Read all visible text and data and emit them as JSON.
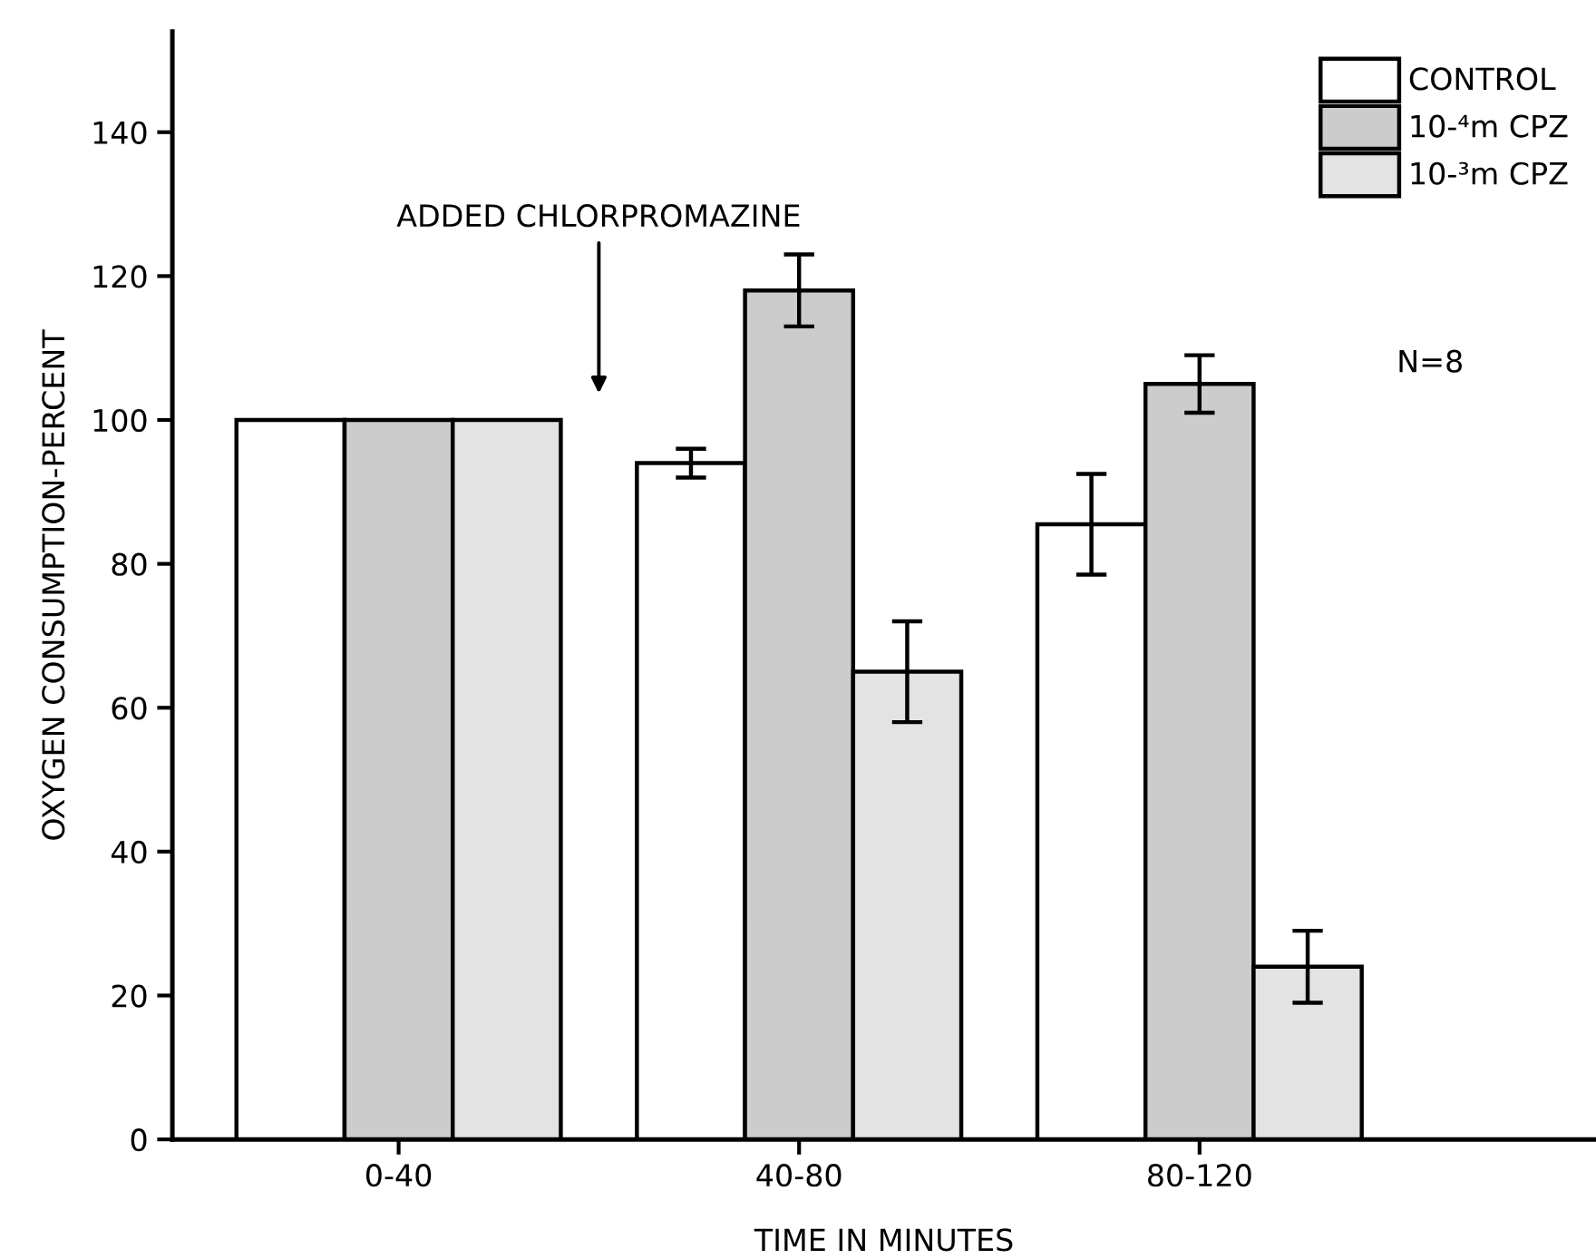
{
  "chart_data": {
    "type": "bar",
    "xlabel": "TIME IN MINUTES",
    "ylabel": "OXYGEN CONSUMPTION-PERCENT",
    "categories": [
      "0-40",
      "40-80",
      "80-120"
    ],
    "series": [
      {
        "name": "CONTROL",
        "color": "#ffffff",
        "values": [
          100,
          94,
          85.5
        ],
        "errors": [
          null,
          2,
          7
        ]
      },
      {
        "name": "10-⁴m CPZ",
        "color": "#cccccc",
        "values": [
          100,
          118,
          105
        ],
        "errors": [
          null,
          5,
          4
        ]
      },
      {
        "name": "10-³m CPZ",
        "color": "#e3e3e3",
        "values": [
          100,
          65,
          24
        ],
        "errors": [
          null,
          7,
          5
        ]
      }
    ],
    "ylim": [
      0,
      154
    ],
    "yticks": [
      0,
      20,
      40,
      60,
      80,
      100,
      120,
      140
    ],
    "annotations": [
      "ADDED CHLORPROMAZINE",
      "N=8"
    ],
    "legend": "top right",
    "grid": false
  }
}
